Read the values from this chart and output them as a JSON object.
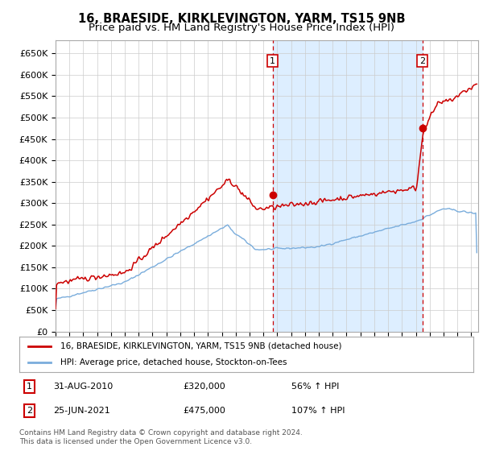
{
  "title": "16, BRAESIDE, KIRKLEVINGTON, YARM, TS15 9NB",
  "subtitle": "Price paid vs. HM Land Registry's House Price Index (HPI)",
  "title_fontsize": 10.5,
  "subtitle_fontsize": 9.5,
  "ylabel_ticks": [
    "£0",
    "£50K",
    "£100K",
    "£150K",
    "£200K",
    "£250K",
    "£300K",
    "£350K",
    "£400K",
    "£450K",
    "£500K",
    "£550K",
    "£600K",
    "£650K"
  ],
  "ytick_values": [
    0,
    50000,
    100000,
    150000,
    200000,
    250000,
    300000,
    350000,
    400000,
    450000,
    500000,
    550000,
    600000,
    650000
  ],
  "xlim_start": 1995.0,
  "xlim_end": 2025.5,
  "ylim_min": 0,
  "ylim_max": 680000,
  "hpi_color": "#7aaddc",
  "price_color": "#cc0000",
  "shade_color": "#ddeeff",
  "marker1_date": 2010.66,
  "marker2_date": 2021.48,
  "sale1_price": 320000,
  "sale2_price": 475000,
  "legend_line1": "16, BRAESIDE, KIRKLEVINGTON, YARM, TS15 9NB (detached house)",
  "legend_line2": "HPI: Average price, detached house, Stockton-on-Tees",
  "footer": "Contains HM Land Registry data © Crown copyright and database right 2024.\nThis data is licensed under the Open Government Licence v3.0.",
  "background_color": "#ffffff",
  "plot_bg_color": "#ffffff",
  "grid_color": "#cccccc"
}
